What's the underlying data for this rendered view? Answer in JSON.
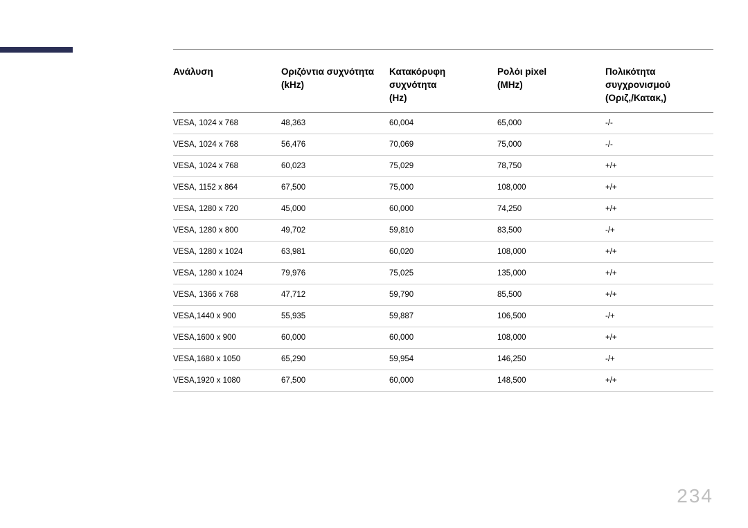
{
  "page_number": "234",
  "colors": {
    "sidebar_bar": "#2a2f55",
    "top_rule": "#999999",
    "header_border": "#888888",
    "row_border": "#cccccc",
    "text": "#000000",
    "page_number": "#bfbfbf",
    "background": "#ffffff"
  },
  "typography": {
    "header_fontsize_pt": 10,
    "body_fontsize_pt": 8.5,
    "page_number_fontsize_pt": 21,
    "font_family": "Arial"
  },
  "table": {
    "type": "table",
    "column_widths_pct": [
      20,
      20,
      20,
      20,
      20
    ],
    "columns": [
      "Ανάλυση",
      "Οριζόντια συχνότητα\n(kHz)",
      "Κατακόρυφη\nσυχνότητα\n(Hz)",
      "Ρολόι pixel\n(MHz)",
      "Πολικότητα\nσυγχρονισμού\n(Οριζ,/Κατακ,)"
    ],
    "rows": [
      [
        "VESA, 1024 x 768",
        "48,363",
        "60,004",
        "65,000",
        "-/-"
      ],
      [
        "VESA, 1024 x 768",
        "56,476",
        "70,069",
        "75,000",
        "-/-"
      ],
      [
        "VESA, 1024 x 768",
        "60,023",
        "75,029",
        "78,750",
        "+/+"
      ],
      [
        "VESA, 1152 x 864",
        "67,500",
        "75,000",
        "108,000",
        "+/+"
      ],
      [
        "VESA, 1280 x 720",
        "45,000",
        "60,000",
        "74,250",
        "+/+"
      ],
      [
        "VESA, 1280 x 800",
        "49,702",
        "59,810",
        "83,500",
        "-/+"
      ],
      [
        "VESA, 1280 x 1024",
        "63,981",
        "60,020",
        "108,000",
        "+/+"
      ],
      [
        "VESA, 1280 x 1024",
        "79,976",
        "75,025",
        "135,000",
        "+/+"
      ],
      [
        "VESA, 1366 x 768",
        "47,712",
        "59,790",
        "85,500",
        "+/+"
      ],
      [
        "VESA,1440 x 900",
        "55,935",
        "59,887",
        "106,500",
        "-/+"
      ],
      [
        "VESA,1600 x 900",
        "60,000",
        "60,000",
        "108,000",
        "+/+"
      ],
      [
        "VESA,1680 x 1050",
        "65,290",
        "59,954",
        "146,250",
        "-/+"
      ],
      [
        "VESA,1920 x 1080",
        "67,500",
        "60,000",
        "148,500",
        "+/+"
      ]
    ]
  }
}
